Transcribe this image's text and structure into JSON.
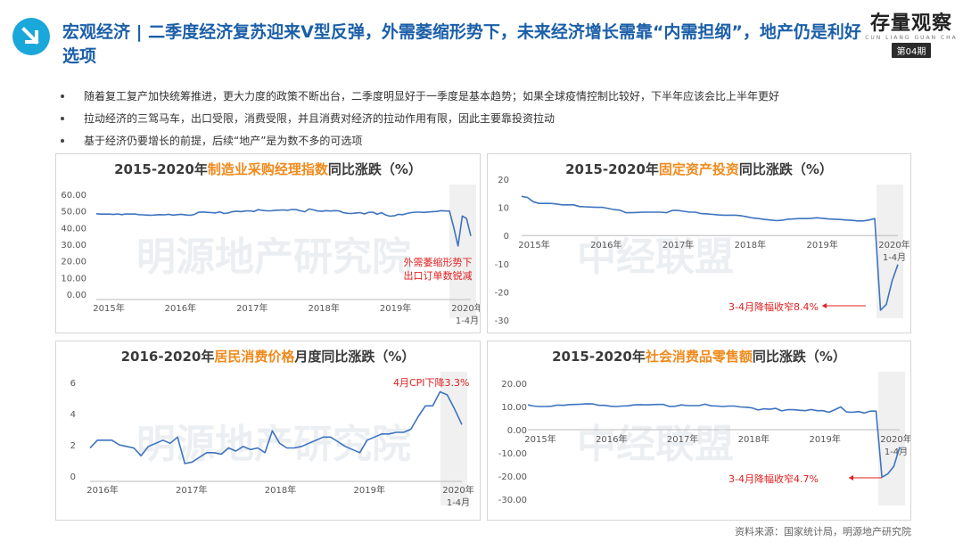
{
  "header": {
    "title": "宏观经济 | 二季度经济复苏迎来V型反弹，外需萎缩形势下，未来经济增长需靠“内需担纲”，地产仍是利好选项",
    "brand_name": "存量观察",
    "brand_sub": "CUN LIANG GUAN CHA",
    "issue": "第04期"
  },
  "bullets": [
    "随着复工复产加快统筹推进，更大力度的政策不断出台，二季度明显好于一季度是基本趋势；如果全球疫情控制比较好，下半年应该会比上半年更好",
    "拉动经济的三驾马车，出口受限，消费受限，并且消费对经济的拉动作用有限，因此主要靠投资拉动",
    "基于经济仍要增长的前提，后续“地产”是为数不多的可选项"
  ],
  "watermarks": [
    "明源地产研究院",
    "中经联盟"
  ],
  "source": "资料来源：国家统计局，明源地产研究院",
  "colors": {
    "line": "#3d73bf",
    "highlight": "#f08a1c",
    "annotation": "#e02020",
    "title": "#1b5fa8"
  },
  "chart_data": [
    {
      "type": "line",
      "title_pre": "2015-2020年",
      "title_hl": "制造业采购经理指数",
      "title_post": "同比涨跌（%）",
      "ylim": [
        0,
        60
      ],
      "yticks": [
        "60.00",
        "50.00",
        "40.00",
        "30.00",
        "20.00",
        "10.00",
        "0.00"
      ],
      "xticks": [
        "2015年",
        "2016年",
        "2017年",
        "2018年",
        "2019年",
        "2020年"
      ],
      "last_tick_sub": "1-4月",
      "annotation": [
        "外需萎缩形势下",
        "出口订单数锐减"
      ],
      "values": [
        48.3,
        48.1,
        48.1,
        48.1,
        47.9,
        48.2,
        47.8,
        48.2,
        48.1,
        48.2,
        47.8,
        47.7,
        47.5,
        47.4,
        47.6,
        47.8,
        47.7,
        48.0,
        47.5,
        47.8,
        48.0,
        47.6,
        47.4,
        47.9,
        49.2,
        49.4,
        49.2,
        49.0,
        48.8,
        49.5,
        48.5,
        48.8,
        49.6,
        49.9,
        49.6,
        50.0,
        50.1,
        49.7,
        50.8,
        50.4,
        50.1,
        50.1,
        50.4,
        50.5,
        50.6,
        50.4,
        50.9,
        50.8,
        50.1,
        49.5,
        51.2,
        50.7,
        50.0,
        49.9,
        50.2,
        50.0,
        50.2,
        50.1,
        49.0,
        48.6,
        48.5,
        48.8,
        49.0,
        48.2,
        49.1,
        49.3,
        48.0,
        49.0,
        47.6,
        46.9,
        47.1,
        48.0,
        47.8,
        48.5,
        49.0,
        49.3,
        49.3,
        49.1,
        49.4,
        49.6,
        49.7,
        50.2,
        50.0,
        50.0,
        40.0,
        29.0,
        47.0,
        45.5,
        35.0
      ]
    },
    {
      "type": "line",
      "title_pre": "2015-2020年",
      "title_hl": "固定资产投资",
      "title_post": "同比涨跌（%）",
      "ylim": [
        -30,
        20
      ],
      "yticks": [
        "20",
        "10",
        "0",
        "-10",
        "-20",
        "-30"
      ],
      "xticks": [
        "2015年",
        "2016年",
        "2017年",
        "2018年",
        "2019年",
        "2020年"
      ],
      "last_tick_sub": "1-4月",
      "annotation": [
        "3-4月降幅收窄8.4%"
      ],
      "values": [
        13.9,
        13.5,
        12.0,
        11.4,
        11.4,
        11.4,
        11.2,
        10.9,
        10.9,
        10.9,
        10.3,
        10.2,
        10.1,
        10.0,
        10.0,
        9.6,
        9.2,
        9.0,
        8.1,
        8.1,
        8.2,
        8.3,
        8.3,
        8.3,
        8.3,
        8.1,
        8.9,
        8.9,
        8.6,
        8.3,
        8.3,
        7.8,
        7.7,
        7.5,
        7.3,
        7.2,
        7.2,
        7.2,
        7.0,
        6.6,
        6.2,
        6.0,
        5.7,
        5.5,
        5.3,
        5.4,
        5.8,
        5.9,
        6.0,
        6.0,
        6.1,
        6.3,
        6.1,
        5.9,
        5.8,
        5.7,
        5.5,
        5.4,
        5.2,
        5.2,
        5.5,
        6.0,
        -26.5,
        -24.5,
        -16.1,
        -10.3
      ]
    },
    {
      "type": "line",
      "title_pre": "2016-2020年",
      "title_hl": "居民消费价格",
      "title_post": "月度同比涨跌（%）",
      "ylim": [
        0,
        6
      ],
      "yticks": [
        "6",
        "4",
        "2",
        "0"
      ],
      "xticks": [
        "2016年",
        "2017年",
        "2018年",
        "2019年",
        "2020年"
      ],
      "last_tick_sub": "1-4月",
      "annotation": [
        "4月CPI下降3.3%"
      ],
      "values": [
        1.8,
        2.3,
        2.3,
        2.3,
        2.0,
        1.9,
        1.8,
        1.3,
        1.9,
        2.1,
        2.3,
        2.1,
        2.5,
        0.8,
        0.9,
        1.2,
        1.5,
        1.5,
        1.4,
        1.8,
        1.6,
        1.9,
        1.7,
        1.8,
        1.5,
        2.9,
        2.1,
        1.8,
        1.8,
        1.9,
        2.1,
        2.3,
        2.5,
        2.5,
        2.2,
        1.9,
        1.7,
        1.5,
        2.3,
        2.5,
        2.7,
        2.7,
        2.8,
        2.8,
        3.0,
        3.8,
        4.5,
        4.5,
        5.4,
        5.2,
        4.3,
        3.3
      ]
    },
    {
      "type": "line",
      "title_pre": "2015-2020年",
      "title_hl": "社会消费品零售额",
      "title_post": "同比涨跌（%）",
      "ylim": [
        -30,
        20
      ],
      "yticks": [
        "20.00",
        "10.00",
        "0.00",
        "-10.00",
        "-20.00",
        "-30.00"
      ],
      "xticks": [
        "2015年",
        "2016年",
        "2017年",
        "2018年",
        "2019年",
        "2020年"
      ],
      "last_tick_sub": "1-4月",
      "annotation": [
        "3-4月降幅收窄4.7%"
      ],
      "values": [
        10.7,
        10.2,
        10.0,
        10.0,
        10.1,
        10.6,
        10.5,
        10.8,
        10.9,
        11.0,
        11.2,
        11.1,
        10.5,
        10.5,
        10.1,
        10.0,
        10.2,
        10.3,
        10.7,
        10.8,
        10.7,
        10.8,
        10.9,
        10.9,
        10.0,
        10.1,
        10.7,
        10.4,
        10.4,
        10.4,
        11.0,
        10.3,
        10.2,
        10.0,
        10.2,
        10.2,
        9.8,
        9.7,
        9.4,
        8.5,
        9.0,
        8.8,
        9.2,
        8.1,
        8.6,
        8.6,
        8.4,
        8.2,
        8.7,
        8.2,
        8.2,
        7.5,
        8.6,
        9.8,
        7.6,
        7.5,
        7.8,
        7.2,
        8.0,
        8.0,
        -20.5,
        -19.0,
        -15.8,
        -7.5
      ]
    }
  ]
}
